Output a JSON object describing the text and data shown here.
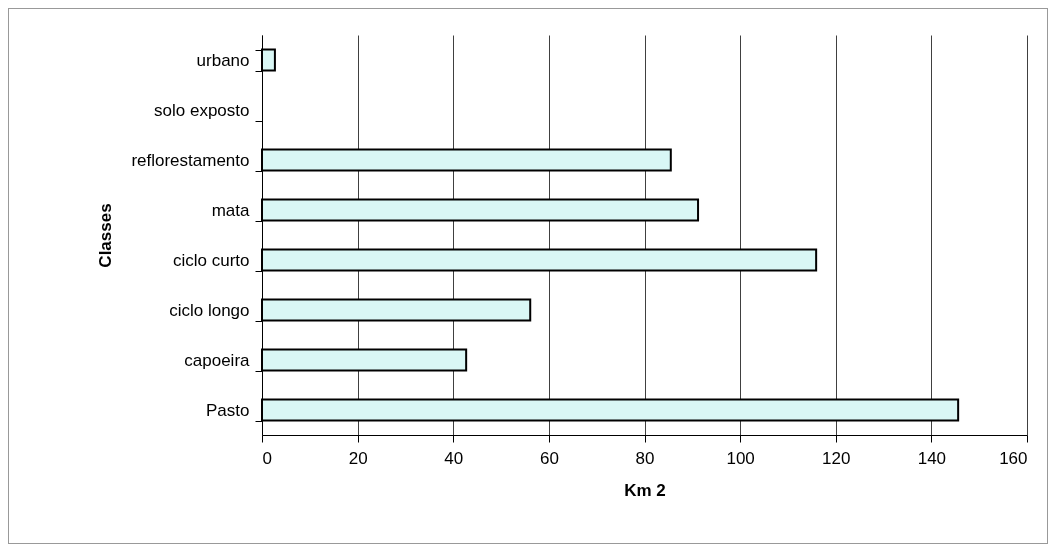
{
  "chart_data": {
    "type": "bar",
    "orientation": "horizontal",
    "xlabel": "Km 2",
    "ylabel": "Classes",
    "categories": [
      "urbano",
      "solo exposto",
      "reflorestamento",
      "mata",
      "ciclo curto",
      "ciclo longo",
      "capoeira",
      "Pasto"
    ],
    "values": [
      2.7,
      0,
      85.5,
      91.2,
      115.9,
      56.1,
      42.7,
      145.6
    ],
    "color": "#d9f7f5",
    "xlim": [
      0,
      160
    ],
    "xticks": [
      0,
      20,
      40,
      60,
      80,
      100,
      120,
      140,
      160
    ],
    "grid": "x"
  }
}
